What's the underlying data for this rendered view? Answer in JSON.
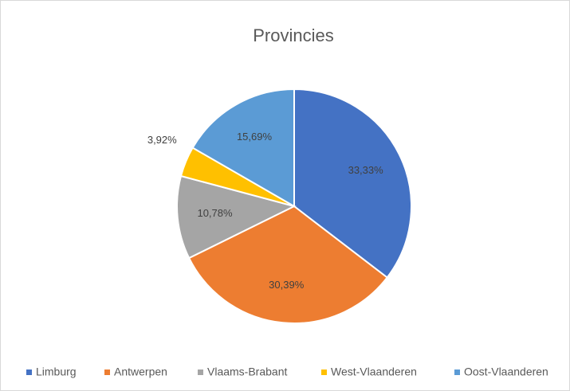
{
  "chart_data": {
    "type": "pie",
    "title": "Provincies",
    "categories": [
      "Limburg",
      "Antwerpen",
      "Vlaams-Brabant",
      "West-Vlaanderen",
      "Oost-Vlaanderen"
    ],
    "values": [
      33.33,
      30.39,
      10.78,
      3.92,
      15.69
    ],
    "value_labels": [
      "33,33%",
      "30,39%",
      "10,78%",
      "3,92%",
      "15,69%"
    ],
    "colors": [
      "#4472c4",
      "#ed7d31",
      "#a5a5a5",
      "#ffc000",
      "#5b9bd5"
    ],
    "legend": "bottom"
  }
}
